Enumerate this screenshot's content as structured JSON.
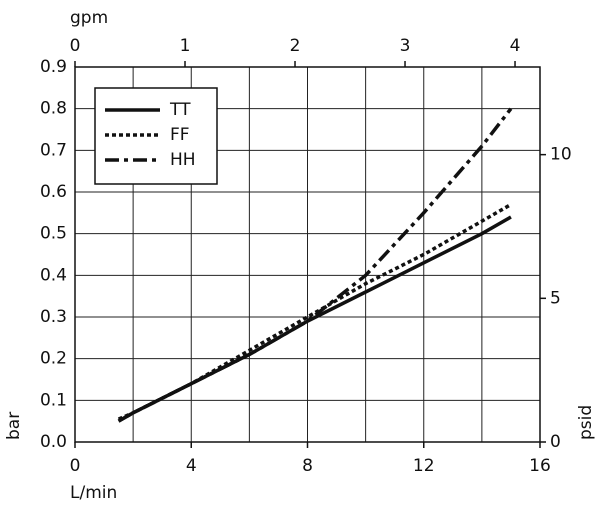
{
  "chart_data": {
    "type": "line",
    "x_label": "L/min",
    "y_label": "bar",
    "x2_label": "gpm",
    "y2_label": "psid",
    "x": [
      1.5,
      2,
      4,
      6,
      8,
      10,
      12,
      14,
      15
    ],
    "series": [
      {
        "name": "TT",
        "color": "#111111",
        "style": "solid",
        "values": [
          0.05,
          0.07,
          0.14,
          0.21,
          0.29,
          0.36,
          0.43,
          0.5,
          0.54
        ]
      },
      {
        "name": "FF",
        "color": "#111111",
        "style": "dotted",
        "values": [
          0.055,
          0.07,
          0.14,
          0.22,
          0.3,
          0.38,
          0.45,
          0.53,
          0.57
        ]
      },
      {
        "name": "HH",
        "color": "#111111",
        "style": "dashdot",
        "values": [
          0.05,
          0.07,
          0.14,
          0.21,
          0.29,
          0.4,
          0.55,
          0.71,
          0.8
        ]
      }
    ],
    "xlim": [
      0,
      16
    ],
    "xticks": [
      0,
      4,
      8,
      12,
      16
    ],
    "ylim": [
      0,
      0.9
    ],
    "yticks": [
      {
        "value": 0,
        "label": "0.0"
      },
      0.1,
      0.2,
      0.3,
      0.4,
      0.5,
      0.6,
      0.7,
      0.8,
      0.9
    ],
    "x2lim": [
      0,
      4.227
    ],
    "x2ticks": [
      0,
      1,
      2,
      3,
      4
    ],
    "y2lim": [
      0,
      13.05
    ],
    "y2ticks": [
      0,
      5,
      10
    ],
    "grid": true,
    "legend": "upper left"
  }
}
